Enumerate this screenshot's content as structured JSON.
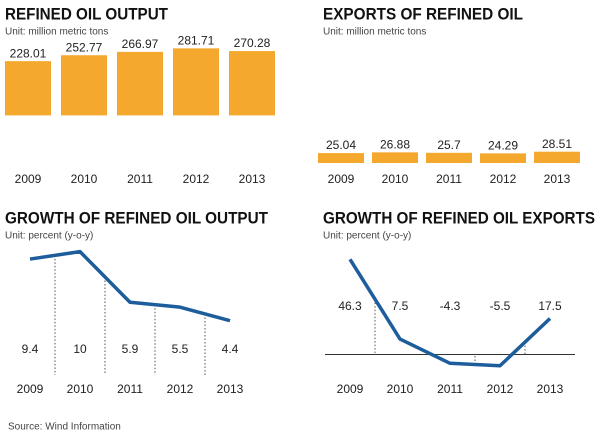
{
  "chart_data": [
    {
      "type": "bar",
      "title": "REFINED OIL OUTPUT",
      "subtitle": "Unit: million metric tons",
      "categories": [
        "2009",
        "2010",
        "2011",
        "2012",
        "2013"
      ],
      "values": [
        228.01,
        252.77,
        266.97,
        281.71,
        270.28
      ],
      "color": "#f5a82e",
      "ylim": [
        -200,
        300
      ]
    },
    {
      "type": "bar",
      "title": "EXPORTS OF REFINED OIL",
      "subtitle": "Unit: million metric tons",
      "categories": [
        "2009",
        "2010",
        "2011",
        "2012",
        "2013"
      ],
      "values": [
        25.04,
        26.88,
        25.7,
        24.29,
        28.51
      ],
      "color": "#f5a82e",
      "ylim": [
        0,
        300
      ]
    },
    {
      "type": "line",
      "title": "GROWTH OF REFINED OIL OUTPUT",
      "subtitle": "Unit: percent (y-o-y)",
      "categories": [
        "2009",
        "2010",
        "2011",
        "2012",
        "2013"
      ],
      "values": [
        9.4,
        10,
        5.9,
        5.5,
        4.4
      ],
      "color": "#1d5d9b",
      "ylim": [
        0,
        12
      ],
      "zero_line": false
    },
    {
      "type": "line",
      "title": "GROWTH OF REFINED OIL EXPORTS",
      "subtitle": "Unit: percent (y-o-y)",
      "categories": [
        "2009",
        "2010",
        "2011",
        "2012",
        "2013"
      ],
      "values": [
        46.3,
        7.5,
        -4.3,
        -5.5,
        17.5
      ],
      "color": "#1d5d9b",
      "ylim": [
        -10,
        62
      ],
      "zero_line": true
    }
  ],
  "source": "Source: Wind Information"
}
